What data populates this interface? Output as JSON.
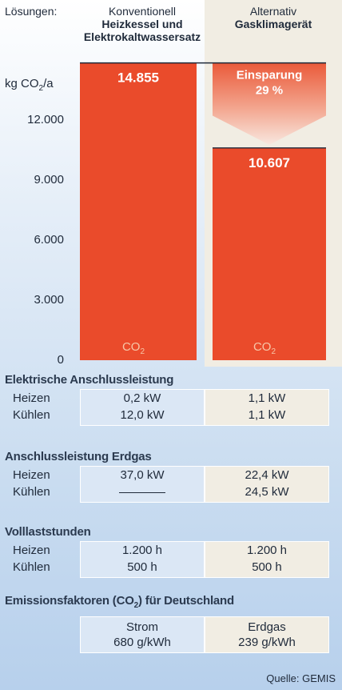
{
  "header": {
    "loesungen_label": "Lösungen:",
    "col1_line1": "Konventionell",
    "col1_line2": "Heizkessel und",
    "col1_line3": "Elektrokaltwassersatz",
    "col2_line1": "Alternativ",
    "col2_line2": "Gasklimagerät"
  },
  "chart_data": {
    "type": "bar",
    "ylabel": "kg CO₂/a",
    "ylim": [
      0,
      14855
    ],
    "yticks": [
      "0",
      "3.000",
      "6.000",
      "9.000",
      "12.000"
    ],
    "ytick_values": [
      0,
      3000,
      6000,
      9000,
      12000
    ],
    "categories": [
      "Konventionell",
      "Alternativ"
    ],
    "values": [
      14855,
      10607
    ],
    "value_labels": [
      "14.855",
      "10.607"
    ],
    "bar_base_label": "CO",
    "bar_base_sub": "2",
    "savings_label": "Einsparung",
    "savings_value": "29 %",
    "bar_color": "#ea4b2b"
  },
  "sections": [
    {
      "title": "Elektrische Anschlussleistung",
      "rows": [
        {
          "label": "Heizen",
          "left": "0,2 kW",
          "right": "1,1 kW"
        },
        {
          "label": "Kühlen",
          "left": "12,0 kW",
          "right": "1,1 kW"
        }
      ]
    },
    {
      "title": "Anschlussleistung Erdgas",
      "rows": [
        {
          "label": "Heizen",
          "left": "37,0 kW",
          "right": "22,4 kW"
        },
        {
          "label": "Kühlen",
          "left": "",
          "right": "24,5 kW"
        }
      ]
    },
    {
      "title": "Volllaststunden",
      "rows": [
        {
          "label": "Heizen",
          "left": "1.200 h",
          "right": "1.200 h"
        },
        {
          "label": "Kühlen",
          "left": "500 h",
          "right": "500 h"
        }
      ]
    }
  ],
  "emissions": {
    "title_pre": "Emissionsfaktoren (CO",
    "title_sub": "2",
    "title_post": ") für Deutschland",
    "left_name": "Strom",
    "left_value": "680 g/kWh",
    "right_name": "Erdgas",
    "right_value": "239 g/kWh"
  },
  "source": "Quelle: GEMIS"
}
